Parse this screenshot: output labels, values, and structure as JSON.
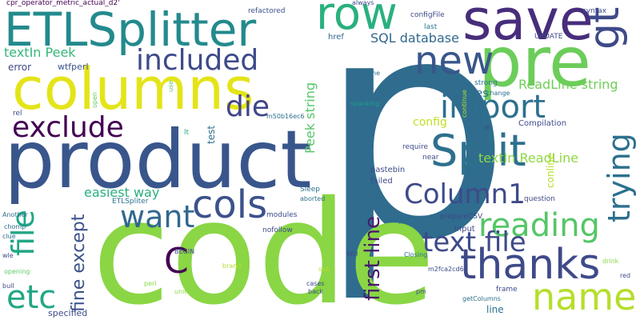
{
  "words": [
    {
      "text": "p",
      "color": "#2f6c8e"
    },
    {
      "text": "code",
      "color": "#8ad645"
    },
    {
      "text": "product",
      "color": "#39568c"
    },
    {
      "text": "columns",
      "color": "#e4e419"
    },
    {
      "text": "ETLSplitter",
      "color": "#238a8d"
    },
    {
      "text": "save",
      "color": "#472d7b"
    },
    {
      "text": "pre",
      "color": "#6ccd5a"
    },
    {
      "text": "row",
      "color": "#2ab07f"
    },
    {
      "text": "Split",
      "color": "#2d708e"
    },
    {
      "text": "new",
      "color": "#39568c"
    },
    {
      "text": "gt",
      "color": "#3e4a89"
    },
    {
      "text": "import",
      "color": "#2d708e"
    },
    {
      "text": "included",
      "color": "#3e4a89"
    },
    {
      "text": "exclude",
      "color": "#440154"
    },
    {
      "text": "die",
      "color": "#414487"
    },
    {
      "text": "trying",
      "color": "#2d708e"
    },
    {
      "text": "name",
      "color": "#b5de2b"
    },
    {
      "text": "thanks",
      "color": "#3e4a89"
    },
    {
      "text": "reading",
      "color": "#55c667"
    },
    {
      "text": "cols",
      "color": "#3b528b"
    },
    {
      "text": "want",
      "color": "#31688e"
    },
    {
      "text": "Column1",
      "color": "#3e4a89"
    },
    {
      "text": "text file",
      "color": "#3e4a89"
    },
    {
      "text": "etc",
      "color": "#21a685"
    },
    {
      "text": "file",
      "color": "#21a685"
    },
    {
      "text": "C",
      "color": "#440154"
    },
    {
      "text": "first line",
      "color": "#48196b"
    },
    {
      "text": "fine except",
      "color": "#3b528b"
    },
    {
      "text": "easiest way",
      "color": "#29af7f"
    },
    {
      "text": "textIn Peek",
      "color": "#35b779"
    },
    {
      "text": "SQL database",
      "color": "#31688e"
    },
    {
      "text": "Peek string",
      "color": "#55c667"
    },
    {
      "text": "ReadLine string",
      "color": "#6ece58"
    },
    {
      "text": "textIn ReadLine",
      "color": "#8fd744"
    },
    {
      "text": "values",
      "color": "#2d708e"
    },
    {
      "text": "config",
      "color": "#c0df25"
    },
    {
      "text": "error",
      "color": "#3e4a89"
    },
    {
      "text": "wtfperl",
      "color": "#3b528b"
    },
    {
      "text": "cpr_operator_metric_actual_d2'",
      "color": "#440154"
    },
    {
      "text": "always",
      "color": "#3e4a89"
    },
    {
      "text": "refactored",
      "color": "#3b528b"
    },
    {
      "text": "configFile",
      "color": "#3e4a89"
    },
    {
      "text": "last",
      "color": "#2a788e"
    },
    {
      "text": "href",
      "color": "#31688e"
    },
    {
      "text": "syntax",
      "color": "#3e4a89"
    },
    {
      "text": "UPDATE",
      "color": "#3e4a89"
    },
    {
      "text": "come",
      "color": "#2d708e"
    },
    {
      "text": "strong",
      "color": "#2d708e"
    },
    {
      "text": "change",
      "color": "#2d708e"
    },
    {
      "text": "use",
      "color": "#5ec962"
    },
    {
      "text": "open",
      "color": "#5ec962"
    },
    {
      "text": "spanking",
      "color": "#1f9e89"
    },
    {
      "text": "continue",
      "color": "#b5de2b"
    },
    {
      "text": "Compilation",
      "color": "#3e4a89"
    },
    {
      "text": "e",
      "color": "#3e4a89"
    },
    {
      "text": "rel",
      "color": "#3e4a89"
    },
    {
      "text": "lt",
      "color": "#29af7f"
    },
    {
      "text": "test",
      "color": "#2d708e"
    },
    {
      "text": "m50b16ec6",
      "color": "#2d708e"
    },
    {
      "text": "pastebin",
      "color": "#3e4a89"
    },
    {
      "text": "require",
      "color": "#3e4a89"
    },
    {
      "text": "near",
      "color": "#3e4a89"
    },
    {
      "text": "conline",
      "color": "#b5de2b"
    },
    {
      "text": "failed",
      "color": "#3e4a89"
    },
    {
      "text": "question",
      "color": "#3e4a89"
    },
    {
      "text": "Sleep",
      "color": "#2d708e"
    },
    {
      "text": "ETLSpliter",
      "color": "#2d708e"
    },
    {
      "text": "aborted",
      "color": "#2d708e"
    },
    {
      "text": "modules",
      "color": "#3e4a89"
    },
    {
      "text": "configFile",
      "color": "#2d708e"
    },
    {
      "text": "prepareCSV",
      "color": "#3e4a89"
    },
    {
      "text": "input",
      "color": "#3e4a89"
    },
    {
      "text": "Another",
      "color": "#2d708e"
    },
    {
      "text": "chomp",
      "color": "#2d708e"
    },
    {
      "text": "clue",
      "color": "#2d708e"
    },
    {
      "text": "nofollow",
      "color": "#3e4a89"
    },
    {
      "text": "BEGIN",
      "color": "#3e4a89"
    },
    {
      "text": "Will",
      "color": "#3e4a89"
    },
    {
      "text": "Closing",
      "color": "#2d708e"
    },
    {
      "text": "drink",
      "color": "#8ad645"
    },
    {
      "text": "red",
      "color": "#3e4a89"
    },
    {
      "text": "wle",
      "color": "#3e4a89"
    },
    {
      "text": "opening",
      "color": "#5ec962"
    },
    {
      "text": "bull",
      "color": "#3e4a89"
    },
    {
      "text": "brand",
      "color": "#b5de2b"
    },
    {
      "text": "sub",
      "color": "#b5de2b"
    },
    {
      "text": "perl",
      "color": "#8ad645"
    },
    {
      "text": "unit",
      "color": "#8ad645"
    },
    {
      "text": "cases",
      "color": "#3e4a89"
    },
    {
      "text": "back",
      "color": "#3e4a89"
    },
    {
      "text": "m2fca2cd6",
      "color": "#3e4a89"
    },
    {
      "text": "frame",
      "color": "#3e4a89"
    },
    {
      "text": "pm",
      "color": "#3e4a89"
    },
    {
      "text": "getColumns",
      "color": "#2d708e"
    },
    {
      "text": "line",
      "color": "#2d708e"
    },
    {
      "text": "specified",
      "color": "#3e4a89"
    }
  ]
}
